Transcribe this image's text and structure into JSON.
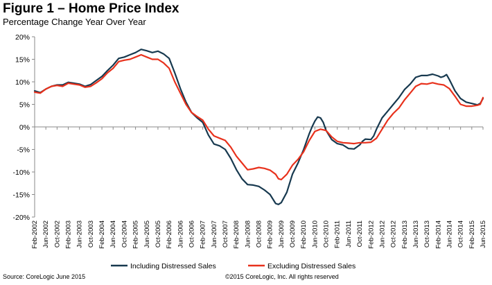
{
  "figure": {
    "title": "Figure 1 – Home Price Index",
    "subtitle": "Percentage Change Year Over Year"
  },
  "footer": {
    "source": "Source: CoreLogic June 2015",
    "copyright": "©2015 CoreLogic, Inc. All rights reserved"
  },
  "colors": {
    "including": "#17394f",
    "excluding": "#e8311c",
    "axis": "#888888"
  },
  "chart_data": {
    "type": "line",
    "title": "Figure 1 – Home Price Index",
    "subtitle": "Percentage Change Year Over Year",
    "ylim": [
      -20,
      20
    ],
    "y_ticks": [
      "20%",
      "15%",
      "10%",
      "5%",
      "0%",
      "-5%",
      "-10%",
      "-15%",
      "-20%"
    ],
    "y_tick_values": [
      20,
      15,
      10,
      5,
      0,
      -5,
      -10,
      -15,
      -20
    ],
    "x_range": [
      "Feb-2002",
      "Jun-2015"
    ],
    "x_ticks": [
      "Feb-2002",
      "Jun-2002",
      "Oct-2002",
      "Feb-2003",
      "Jun-2003",
      "Oct-2003",
      "Feb-2004",
      "Jun-2004",
      "Oct-2004",
      "Feb-2005",
      "Jun-2005",
      "Oct-2005",
      "Feb-2006",
      "Jun-2006",
      "Oct-2006",
      "Feb-2007",
      "Jun-2007",
      "Oct-2007",
      "Feb-2008",
      "Jun-2008",
      "Oct-2008",
      "Feb-2009",
      "Jun-2009",
      "Oct-2009",
      "Feb-2010",
      "Jun-2010",
      "Oct-2010",
      "Feb-2011",
      "Jun-2011",
      "Oct-2011",
      "Feb-2012",
      "Jun-2012",
      "Oct-2012",
      "Feb-2013",
      "Jun-2013",
      "Oct-2013",
      "Feb-2014",
      "Jun-2014",
      "Oct-2014",
      "Feb-2015",
      "Jun-2015"
    ],
    "legend_position": "bottom",
    "grid": false,
    "series": [
      {
        "name": "Including Distressed Sales",
        "color": "#17394f",
        "points": [
          [
            "Feb-2002",
            8.0
          ],
          [
            "Apr-2002",
            7.6
          ],
          [
            "Jun-2002",
            8.4
          ],
          [
            "Aug-2002",
            9.0
          ],
          [
            "Oct-2002",
            9.3
          ],
          [
            "Dec-2002",
            9.3
          ],
          [
            "Feb-2003",
            9.9
          ],
          [
            "Apr-2003",
            9.7
          ],
          [
            "Jun-2003",
            9.5
          ],
          [
            "Aug-2003",
            9.0
          ],
          [
            "Oct-2003",
            9.4
          ],
          [
            "Dec-2003",
            10.3
          ],
          [
            "Feb-2004",
            11.2
          ],
          [
            "Apr-2004",
            12.5
          ],
          [
            "Jun-2004",
            13.7
          ],
          [
            "Aug-2004",
            15.2
          ],
          [
            "Oct-2004",
            15.5
          ],
          [
            "Dec-2004",
            16.0
          ],
          [
            "Feb-2005",
            16.5
          ],
          [
            "Apr-2005",
            17.2
          ],
          [
            "Jun-2005",
            16.9
          ],
          [
            "Aug-2005",
            16.5
          ],
          [
            "Oct-2005",
            16.8
          ],
          [
            "Dec-2005",
            16.2
          ],
          [
            "Feb-2006",
            15.2
          ],
          [
            "Apr-2006",
            12.0
          ],
          [
            "Jun-2006",
            8.5
          ],
          [
            "Aug-2006",
            5.5
          ],
          [
            "Oct-2006",
            3.2
          ],
          [
            "Dec-2006",
            2.0
          ],
          [
            "Feb-2007",
            1.0
          ],
          [
            "Apr-2007",
            -1.8
          ],
          [
            "Jun-2007",
            -3.8
          ],
          [
            "Aug-2007",
            -4.2
          ],
          [
            "Oct-2007",
            -5.0
          ],
          [
            "Dec-2007",
            -7.0
          ],
          [
            "Feb-2008",
            -9.5
          ],
          [
            "Apr-2008",
            -11.5
          ],
          [
            "Jun-2008",
            -12.8
          ],
          [
            "Aug-2008",
            -12.9
          ],
          [
            "Oct-2008",
            -13.2
          ],
          [
            "Dec-2008",
            -14.0
          ],
          [
            "Feb-2009",
            -15.0
          ],
          [
            "Apr-2009",
            -17.0
          ],
          [
            "May-2009",
            -17.2
          ],
          [
            "Jun-2009",
            -16.8
          ],
          [
            "Aug-2009",
            -14.5
          ],
          [
            "Oct-2009",
            -10.5
          ],
          [
            "Dec-2009",
            -8.0
          ],
          [
            "Feb-2010",
            -5.0
          ],
          [
            "Apr-2010",
            -1.5
          ],
          [
            "May-2010",
            0.0
          ],
          [
            "Jun-2010",
            1.3
          ],
          [
            "Jul-2010",
            2.2
          ],
          [
            "Aug-2010",
            2.0
          ],
          [
            "Sep-2010",
            1.0
          ],
          [
            "Oct-2010",
            -0.8
          ],
          [
            "Dec-2010",
            -2.8
          ],
          [
            "Feb-2011",
            -3.7
          ],
          [
            "Apr-2011",
            -4.0
          ],
          [
            "Jun-2011",
            -4.8
          ],
          [
            "Aug-2011",
            -4.9
          ],
          [
            "Oct-2011",
            -4.0
          ],
          [
            "Nov-2011",
            -3.2
          ],
          [
            "Dec-2011",
            -2.7
          ],
          [
            "Feb-2012",
            -2.8
          ],
          [
            "Mar-2012",
            -2.0
          ],
          [
            "Apr-2012",
            -0.5
          ],
          [
            "Jun-2012",
            2.0
          ],
          [
            "Aug-2012",
            3.5
          ],
          [
            "Oct-2012",
            5.0
          ],
          [
            "Dec-2012",
            6.5
          ],
          [
            "Feb-2013",
            8.3
          ],
          [
            "Apr-2013",
            9.5
          ],
          [
            "Jun-2013",
            11.0
          ],
          [
            "Aug-2013",
            11.4
          ],
          [
            "Oct-2013",
            11.4
          ],
          [
            "Dec-2013",
            11.7
          ],
          [
            "Feb-2014",
            11.3
          ],
          [
            "Mar-2014",
            11.0
          ],
          [
            "Apr-2014",
            11.2
          ],
          [
            "May-2014",
            11.6
          ],
          [
            "Jun-2014",
            10.5
          ],
          [
            "Aug-2014",
            8.0
          ],
          [
            "Oct-2014",
            6.3
          ],
          [
            "Dec-2014",
            5.5
          ],
          [
            "Feb-2015",
            5.2
          ],
          [
            "Apr-2015",
            4.9
          ],
          [
            "May-2015",
            5.2
          ],
          [
            "Jun-2015",
            6.3
          ]
        ]
      },
      {
        "name": "Excluding Distressed Sales",
        "color": "#e8311c",
        "points": [
          [
            "Feb-2002",
            7.7
          ],
          [
            "Apr-2002",
            7.5
          ],
          [
            "Jun-2002",
            8.4
          ],
          [
            "Aug-2002",
            9.0
          ],
          [
            "Oct-2002",
            9.2
          ],
          [
            "Dec-2002",
            9.0
          ],
          [
            "Feb-2003",
            9.7
          ],
          [
            "Apr-2003",
            9.5
          ],
          [
            "Jun-2003",
            9.3
          ],
          [
            "Aug-2003",
            8.8
          ],
          [
            "Oct-2003",
            9.0
          ],
          [
            "Dec-2003",
            9.8
          ],
          [
            "Feb-2004",
            10.7
          ],
          [
            "Apr-2004",
            12.0
          ],
          [
            "Jun-2004",
            13.0
          ],
          [
            "Aug-2004",
            14.5
          ],
          [
            "Oct-2004",
            14.8
          ],
          [
            "Dec-2004",
            15.0
          ],
          [
            "Feb-2005",
            15.5
          ],
          [
            "Apr-2005",
            16.0
          ],
          [
            "Jun-2005",
            15.5
          ],
          [
            "Aug-2005",
            15.0
          ],
          [
            "Oct-2005",
            15.0
          ],
          [
            "Dec-2005",
            14.2
          ],
          [
            "Feb-2006",
            13.0
          ],
          [
            "Apr-2006",
            10.0
          ],
          [
            "Jun-2006",
            7.5
          ],
          [
            "Aug-2006",
            5.0
          ],
          [
            "Oct-2006",
            3.2
          ],
          [
            "Dec-2006",
            2.3
          ],
          [
            "Feb-2007",
            1.5
          ],
          [
            "Apr-2007",
            -0.5
          ],
          [
            "Jun-2007",
            -2.0
          ],
          [
            "Aug-2007",
            -2.5
          ],
          [
            "Oct-2007",
            -3.0
          ],
          [
            "Dec-2007",
            -4.5
          ],
          [
            "Feb-2008",
            -6.5
          ],
          [
            "Apr-2008",
            -8.0
          ],
          [
            "Jun-2008",
            -9.5
          ],
          [
            "Aug-2008",
            -9.3
          ],
          [
            "Oct-2008",
            -9.0
          ],
          [
            "Dec-2008",
            -9.2
          ],
          [
            "Feb-2009",
            -9.6
          ],
          [
            "Apr-2009",
            -10.5
          ],
          [
            "May-2009",
            -11.5
          ],
          [
            "Jun-2009",
            -11.7
          ],
          [
            "Aug-2009",
            -10.5
          ],
          [
            "Oct-2009",
            -8.5
          ],
          [
            "Dec-2009",
            -7.2
          ],
          [
            "Feb-2010",
            -5.5
          ],
          [
            "Apr-2010",
            -3.0
          ],
          [
            "Jun-2010",
            -1.0
          ],
          [
            "Aug-2010",
            -0.5
          ],
          [
            "Oct-2010",
            -0.8
          ],
          [
            "Dec-2010",
            -2.2
          ],
          [
            "Feb-2011",
            -3.2
          ],
          [
            "Apr-2011",
            -3.5
          ],
          [
            "Jun-2011",
            -3.6
          ],
          [
            "Aug-2011",
            -3.7
          ],
          [
            "Oct-2011",
            -3.5
          ],
          [
            "Dec-2011",
            -3.5
          ],
          [
            "Feb-2012",
            -3.4
          ],
          [
            "Apr-2012",
            -2.5
          ],
          [
            "Jun-2012",
            -0.5
          ],
          [
            "Aug-2012",
            1.5
          ],
          [
            "Oct-2012",
            3.0
          ],
          [
            "Dec-2012",
            4.2
          ],
          [
            "Feb-2013",
            6.0
          ],
          [
            "Apr-2013",
            7.5
          ],
          [
            "Jun-2013",
            9.0
          ],
          [
            "Aug-2013",
            9.6
          ],
          [
            "Oct-2013",
            9.5
          ],
          [
            "Dec-2013",
            9.8
          ],
          [
            "Feb-2014",
            9.5
          ],
          [
            "Apr-2014",
            9.3
          ],
          [
            "Jun-2014",
            8.5
          ],
          [
            "Aug-2014",
            6.8
          ],
          [
            "Oct-2014",
            5.0
          ],
          [
            "Dec-2014",
            4.6
          ],
          [
            "Feb-2015",
            4.6
          ],
          [
            "Apr-2015",
            4.8
          ],
          [
            "May-2015",
            5.0
          ],
          [
            "Jun-2015",
            6.5
          ]
        ]
      }
    ]
  }
}
